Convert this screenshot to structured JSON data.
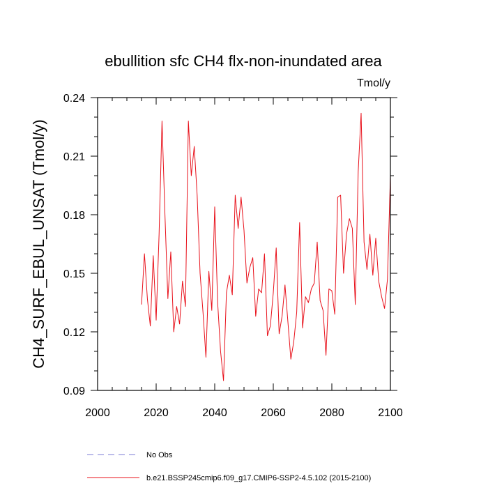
{
  "chart_data": {
    "type": "line",
    "title": "ebullition sfc CH4 flx-non-inundated area",
    "units": "Tmol/y",
    "xlabel": "",
    "ylabel": "CH4_SURF_EBUL_UNSAT  (Tmol/y)",
    "xlim": [
      2000,
      2100
    ],
    "ylim": [
      0.09,
      0.24
    ],
    "xticks": [
      2000,
      2020,
      2040,
      2060,
      2080,
      2100
    ],
    "yticks": [
      0.09,
      0.12,
      0.15,
      0.18,
      0.21,
      0.24
    ],
    "ytick_labels": [
      "0.09",
      "0.12",
      "0.15",
      "0.18",
      "0.21",
      "0.24"
    ],
    "grid": false,
    "legend_position": "bottom",
    "series": [
      {
        "name": "No Obs",
        "color": "#7b7bd6",
        "style": "dashed",
        "x": [],
        "y": []
      },
      {
        "name": "b.e21.BSSP245cmip6.f09_g17.CMIP6-SSP2-4.5.102 (2015-2100)",
        "color": "#e8101a",
        "style": "solid",
        "x": [
          2015,
          2016,
          2017,
          2018,
          2019,
          2020,
          2021,
          2022,
          2023,
          2024,
          2025,
          2026,
          2027,
          2028,
          2029,
          2030,
          2031,
          2032,
          2033,
          2034,
          2035,
          2036,
          2037,
          2038,
          2039,
          2040,
          2041,
          2042,
          2043,
          2044,
          2045,
          2046,
          2047,
          2048,
          2049,
          2050,
          2051,
          2052,
          2053,
          2054,
          2055,
          2056,
          2057,
          2058,
          2059,
          2060,
          2061,
          2062,
          2063,
          2064,
          2065,
          2066,
          2067,
          2068,
          2069,
          2070,
          2071,
          2072,
          2073,
          2074,
          2075,
          2076,
          2077,
          2078,
          2079,
          2080,
          2081,
          2082,
          2083,
          2084,
          2085,
          2086,
          2087,
          2088,
          2089,
          2090,
          2091,
          2092,
          2093,
          2094,
          2095,
          2096,
          2097,
          2098,
          2099,
          2100
        ],
        "y": [
          0.134,
          0.16,
          0.137,
          0.123,
          0.159,
          0.126,
          0.17,
          0.228,
          0.18,
          0.137,
          0.161,
          0.12,
          0.133,
          0.124,
          0.146,
          0.133,
          0.228,
          0.2,
          0.215,
          0.19,
          0.15,
          0.13,
          0.107,
          0.151,
          0.131,
          0.184,
          0.135,
          0.11,
          0.095,
          0.14,
          0.149,
          0.139,
          0.19,
          0.173,
          0.189,
          0.172,
          0.145,
          0.153,
          0.158,
          0.128,
          0.142,
          0.14,
          0.16,
          0.118,
          0.123,
          0.14,
          0.163,
          0.119,
          0.128,
          0.144,
          0.125,
          0.106,
          0.115,
          0.13,
          0.176,
          0.122,
          0.138,
          0.135,
          0.142,
          0.145,
          0.166,
          0.136,
          0.131,
          0.108,
          0.142,
          0.141,
          0.129,
          0.189,
          0.19,
          0.15,
          0.17,
          0.178,
          0.173,
          0.134,
          0.202,
          0.232,
          0.166,
          0.152,
          0.17,
          0.149,
          0.168,
          0.146,
          0.138,
          0.132,
          0.147,
          0.2
        ]
      }
    ]
  }
}
